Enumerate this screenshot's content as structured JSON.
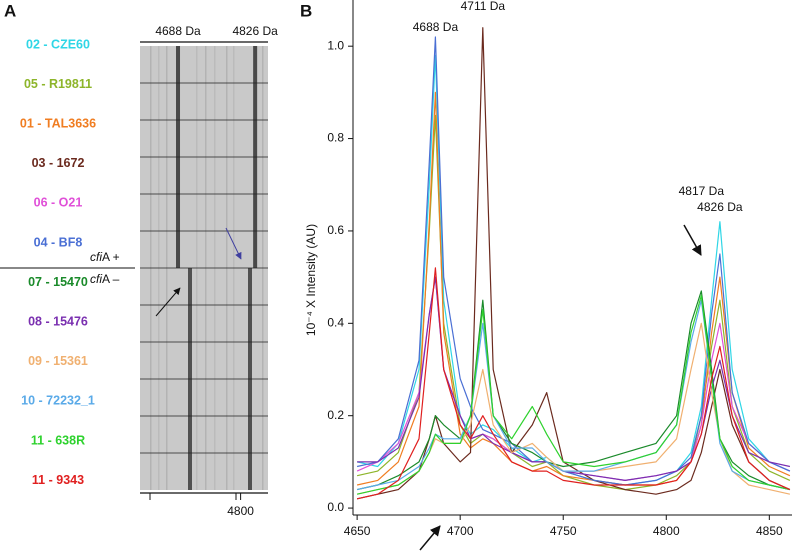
{
  "chart_data": [
    {
      "type": "gel",
      "panel_label": "A",
      "annotations": [
        {
          "text": "4688 Da",
          "x": 4688
        },
        {
          "text": "4826 Da",
          "x": 4826
        }
      ],
      "group_labels": [
        {
          "gene": "cfi",
          "rest": "A +"
        },
        {
          "gene": "cfi",
          "rest": "A –"
        }
      ],
      "xlim": [
        4620,
        4849
      ],
      "xticks": [
        4800
      ]
    },
    {
      "type": "line",
      "panel_label": "B",
      "ylabel": "10⁻⁴ X Intensity (AU)",
      "xlim": [
        4648,
        4861
      ],
      "xticks": [
        4650,
        4700,
        4750,
        4800,
        4850
      ],
      "ylim": [
        -0.015,
        1.1
      ],
      "yticks": [
        {
          "value": 0,
          "label": "0.0"
        },
        0.2,
        0.4,
        0.6,
        0.8,
        {
          "value": 1,
          "label": "1.0"
        }
      ],
      "annotations": [
        {
          "text": "4688 Da",
          "x": 4688,
          "y": 1.04
        },
        {
          "text": "4711 Da",
          "x": 4711,
          "y": 1.085
        },
        {
          "text": "4817 Da",
          "x": 4817,
          "y": 0.685
        },
        {
          "text": "4826 Da",
          "x": 4826,
          "y": 0.65
        }
      ],
      "x": [
        4650,
        4660,
        4670,
        4680,
        4685,
        4688,
        4692,
        4700,
        4705,
        4711,
        4716,
        4725,
        4735,
        4742,
        4750,
        4765,
        4780,
        4795,
        4805,
        4812,
        4817,
        4822,
        4826,
        4832,
        4840,
        4850,
        4860
      ],
      "series": [
        {
          "name": "02 - CZE60",
          "color": "#2fd6e6",
          "values": [
            0.1,
            0.09,
            0.14,
            0.3,
            0.7,
            0.98,
            0.45,
            0.2,
            0.16,
            0.18,
            0.17,
            0.13,
            0.1,
            0.11,
            0.08,
            0.06,
            0.05,
            0.06,
            0.08,
            0.12,
            0.22,
            0.45,
            0.62,
            0.3,
            0.15,
            0.1,
            0.08
          ]
        },
        {
          "name": "05 - R19811",
          "color": "#8db52a",
          "values": [
            0.07,
            0.08,
            0.12,
            0.25,
            0.6,
            0.85,
            0.4,
            0.18,
            0.14,
            0.16,
            0.15,
            0.12,
            0.09,
            0.1,
            0.07,
            0.05,
            0.04,
            0.05,
            0.07,
            0.1,
            0.2,
            0.35,
            0.45,
            0.22,
            0.12,
            0.08,
            0.06
          ]
        },
        {
          "name": "01 - TAL3636",
          "color": "#f07d21",
          "values": [
            0.05,
            0.06,
            0.1,
            0.22,
            0.62,
            0.9,
            0.38,
            0.16,
            0.13,
            0.15,
            0.14,
            0.1,
            0.08,
            0.09,
            0.07,
            0.06,
            0.05,
            0.05,
            0.06,
            0.1,
            0.18,
            0.38,
            0.5,
            0.25,
            0.13,
            0.09,
            0.07
          ]
        },
        {
          "name": "03 - 1672",
          "color": "#6b2a1e",
          "values": [
            0.02,
            0.03,
            0.04,
            0.08,
            0.15,
            0.2,
            0.14,
            0.1,
            0.12,
            1.04,
            0.3,
            0.12,
            0.18,
            0.25,
            0.1,
            0.06,
            0.04,
            0.03,
            0.04,
            0.06,
            0.12,
            0.22,
            0.3,
            0.18,
            0.1,
            0.06,
            0.04
          ]
        },
        {
          "name": "06 - O21",
          "color": "#e050d8",
          "values": [
            0.08,
            0.1,
            0.14,
            0.25,
            0.42,
            0.5,
            0.3,
            0.2,
            0.15,
            0.16,
            0.15,
            0.12,
            0.1,
            0.1,
            0.08,
            0.07,
            0.06,
            0.07,
            0.08,
            0.1,
            0.18,
            0.32,
            0.4,
            0.22,
            0.14,
            0.1,
            0.08
          ]
        },
        {
          "name": "04 - BF8",
          "color": "#4a6fd4",
          "values": [
            0.09,
            0.1,
            0.15,
            0.32,
            0.75,
            1.02,
            0.5,
            0.28,
            0.22,
            0.17,
            0.16,
            0.14,
            0.1,
            0.1,
            0.08,
            0.06,
            0.05,
            0.06,
            0.08,
            0.11,
            0.2,
            0.42,
            0.55,
            0.25,
            0.14,
            0.1,
            0.08
          ]
        },
        {
          "name": "07 - 15470",
          "color": "#1a8a2a",
          "values": [
            0.04,
            0.05,
            0.07,
            0.1,
            0.15,
            0.2,
            0.18,
            0.15,
            0.2,
            0.45,
            0.2,
            0.14,
            0.12,
            0.1,
            0.09,
            0.1,
            0.12,
            0.14,
            0.2,
            0.4,
            0.47,
            0.3,
            0.15,
            0.1,
            0.07,
            0.05,
            0.04
          ]
        },
        {
          "name": "08 - 15476",
          "color": "#7a2fb0",
          "values": [
            0.1,
            0.1,
            0.13,
            0.24,
            0.42,
            0.5,
            0.3,
            0.2,
            0.15,
            0.16,
            0.14,
            0.12,
            0.1,
            0.1,
            0.08,
            0.07,
            0.06,
            0.07,
            0.08,
            0.1,
            0.16,
            0.26,
            0.32,
            0.2,
            0.12,
            0.1,
            0.09
          ]
        },
        {
          "name": "09 - 15361",
          "color": "#f0b070",
          "values": [
            0.03,
            0.04,
            0.05,
            0.08,
            0.12,
            0.15,
            0.14,
            0.14,
            0.18,
            0.3,
            0.18,
            0.12,
            0.14,
            0.11,
            0.08,
            0.08,
            0.09,
            0.1,
            0.15,
            0.3,
            0.4,
            0.25,
            0.15,
            0.08,
            0.05,
            0.04,
            0.03
          ]
        },
        {
          "name": "10 - 72232_1",
          "color": "#5aaae8",
          "values": [
            0.04,
            0.05,
            0.06,
            0.09,
            0.13,
            0.16,
            0.15,
            0.15,
            0.2,
            0.4,
            0.2,
            0.13,
            0.13,
            0.1,
            0.08,
            0.08,
            0.1,
            0.12,
            0.18,
            0.36,
            0.45,
            0.28,
            0.14,
            0.08,
            0.06,
            0.05,
            0.04
          ]
        },
        {
          "name": "11 - 638R",
          "color": "#2ed22e",
          "values": [
            0.03,
            0.04,
            0.05,
            0.08,
            0.12,
            0.16,
            0.14,
            0.14,
            0.2,
            0.43,
            0.2,
            0.15,
            0.22,
            0.16,
            0.1,
            0.09,
            0.1,
            0.12,
            0.18,
            0.38,
            0.46,
            0.28,
            0.15,
            0.09,
            0.06,
            0.05,
            0.04
          ]
        },
        {
          "name": "11 - 9343",
          "color": "#e02020",
          "values": [
            0.02,
            0.03,
            0.06,
            0.15,
            0.38,
            0.52,
            0.3,
            0.18,
            0.15,
            0.2,
            0.16,
            0.1,
            0.08,
            0.08,
            0.06,
            0.05,
            0.05,
            0.05,
            0.06,
            0.1,
            0.16,
            0.28,
            0.35,
            0.2,
            0.1,
            0.06,
            0.04
          ]
        }
      ]
    }
  ]
}
